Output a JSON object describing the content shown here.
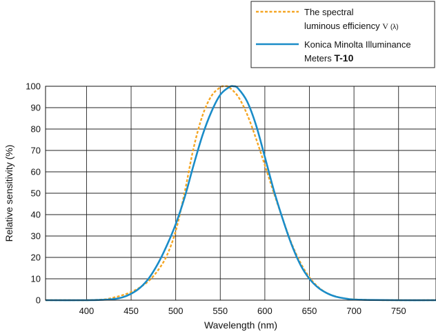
{
  "chart_data": {
    "type": "line",
    "title": "",
    "xlabel": "Wavelength (nm)",
    "ylabel": "Relative sensitivity (%)",
    "xlim": [
      354,
      792
    ],
    "ylim": [
      0,
      100
    ],
    "x_ticks": [
      400,
      450,
      500,
      550,
      600,
      650,
      700,
      750
    ],
    "y_ticks": [
      0,
      10,
      20,
      30,
      40,
      50,
      60,
      70,
      80,
      90,
      100
    ],
    "grid": true,
    "legend_position": "top-right",
    "legend": {
      "vlambda_line1": "The spectral",
      "vlambda_line2_prefix": "luminous efficiency",
      "vlambda_symbol_v": "V",
      "vlambda_symbol_lambda": "(λ)",
      "t10_line1": "Konica Minolta Illuminance",
      "t10_line2_prefix": "Meters",
      "t10_line2_model": "T-10"
    },
    "series": [
      {
        "key": "vlambda",
        "color": "#f5a623",
        "style": "dashed",
        "x": [
          354,
          380,
          400,
          420,
          430,
          440,
          450,
          460,
          470,
          480,
          490,
          500,
          510,
          520,
          530,
          540,
          550,
          555,
          560,
          570,
          580,
          590,
          600,
          610,
          620,
          630,
          640,
          650,
          660,
          670,
          680,
          690,
          700,
          720,
          750,
          792
        ],
        "y": [
          0,
          0,
          0,
          0.4,
          1.2,
          2.3,
          3.8,
          6.0,
          9.1,
          13.9,
          20.8,
          32.3,
          50.3,
          71.0,
          86.2,
          95.4,
          99.5,
          100,
          99.5,
          95.2,
          87.0,
          75.7,
          63.1,
          50.3,
          38.1,
          26.5,
          17.5,
          10.7,
          6.1,
          3.2,
          1.7,
          0.8,
          0.4,
          0.1,
          0,
          0
        ]
      },
      {
        "key": "t10",
        "color": "#1a8cc8",
        "style": "solid",
        "x": [
          354,
          400,
          420,
          430,
          440,
          450,
          460,
          470,
          480,
          490,
          500,
          510,
          520,
          530,
          540,
          550,
          560,
          565,
          570,
          580,
          590,
          600,
          610,
          620,
          630,
          640,
          650,
          660,
          670,
          680,
          690,
          700,
          720,
          750,
          792
        ],
        "y": [
          0,
          0,
          0.2,
          0.5,
          1.3,
          3.0,
          5.8,
          10.3,
          17.0,
          25.5,
          35.5,
          48.0,
          63.0,
          77.0,
          88.0,
          96.0,
          99.6,
          100,
          99.0,
          93.0,
          82.0,
          67.0,
          51.5,
          38.0,
          26.0,
          16.5,
          10.0,
          5.8,
          3.2,
          1.6,
          0.8,
          0.3,
          0.1,
          0,
          0
        ]
      }
    ]
  }
}
